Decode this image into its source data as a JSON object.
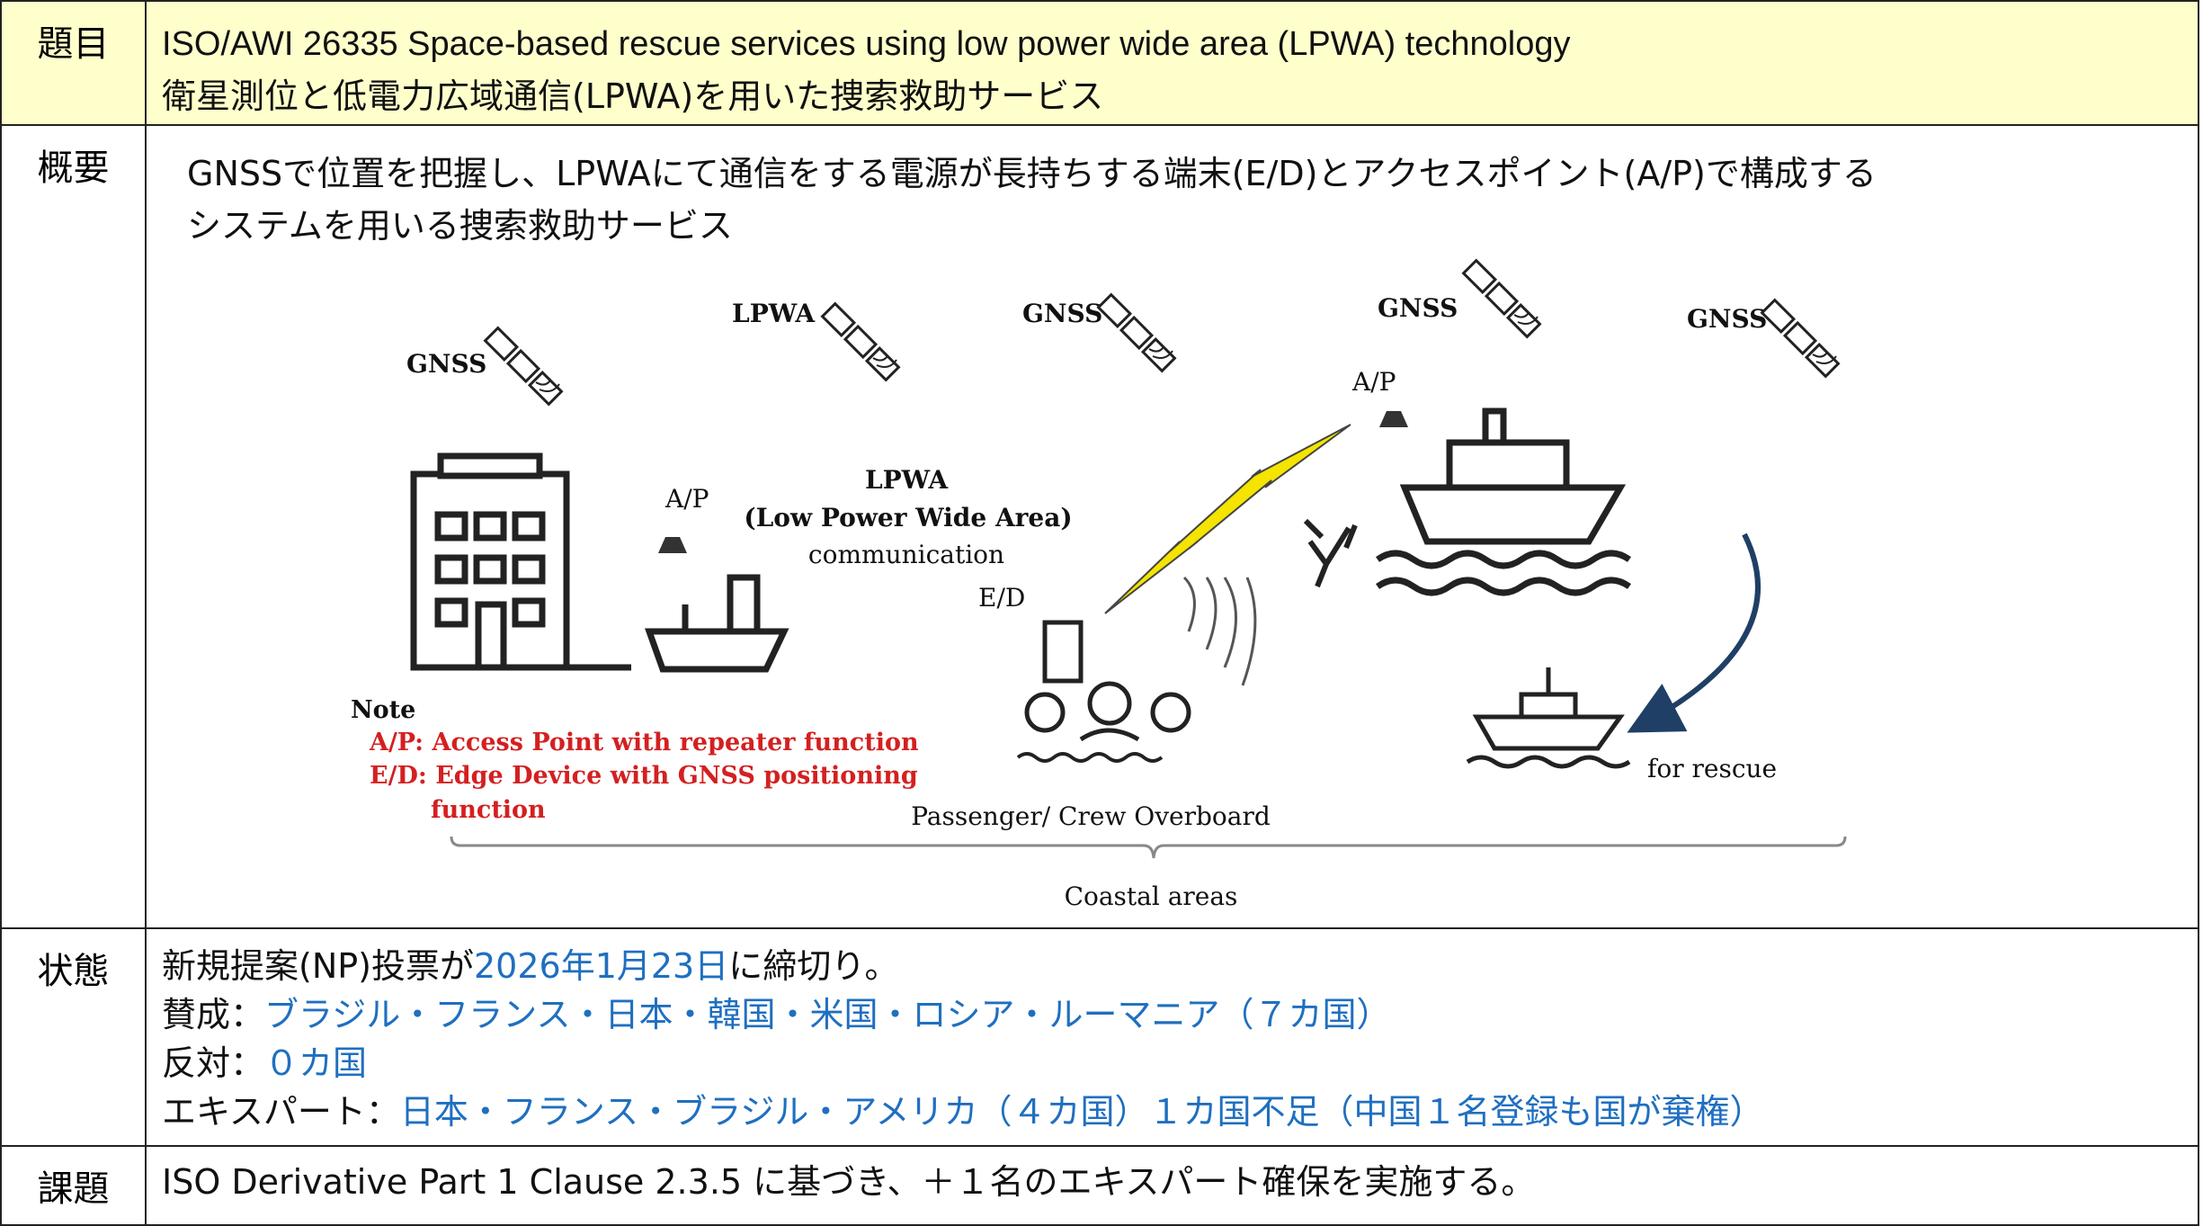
{
  "rows": [
    {
      "label": "題目",
      "lines": [
        "ISO/AWI 26335 Space-based rescue services using low power wide area (LPWA) technology",
        "衛星測位と低電力広域通信(LPWA)を用いた捜索救助サービス"
      ]
    },
    {
      "label": "概要",
      "lines": [
        "GNSSで位置を把握し、LPWAにて通信をする電源が長持ちする端末(E/D)とアクセスポイント(A/P)で構成する",
        "システムを用いる捜索救助サービス"
      ]
    },
    {
      "label": "状態",
      "segments": [
        [
          {
            "text": "新規提案(NP)投票が",
            "blue": false
          },
          {
            "text": "2026年1月23日",
            "blue": true
          },
          {
            "text": "に締切り。",
            "blue": false
          }
        ],
        [
          {
            "text": "賛成：",
            "blue": false
          },
          {
            "text": "ブラジル・フランス・日本・韓国・米国・ロシア・ルーマニア（７カ国）",
            "blue": true
          }
        ],
        [
          {
            "text": "反対：",
            "blue": false
          },
          {
            "text": "０カ国",
            "blue": true
          }
        ],
        [
          {
            "text": "エキスパート：",
            "blue": false
          },
          {
            "text": "日本・フランス・ブラジル・アメリカ（４カ国）１カ国不足（中国１名登録も国が棄権）",
            "blue": true
          }
        ]
      ]
    },
    {
      "label": "課題",
      "lines": [
        "ISO Derivative Part 1 Clause 2.3.5 に基づき、＋１名のエキスパート確保を実施する。"
      ]
    }
  ],
  "diagram": {
    "labels": [
      "GNSS",
      "LPWA",
      "GNSS",
      "GNSS",
      "GNSS",
      "LPWA",
      "(Low Power Wide Area)",
      "A/P",
      "A/P",
      "communication",
      "E/D",
      "Passenger/ Crew Overboard",
      "for rescue",
      "Coastal areas"
    ],
    "note": {
      "title": "Note",
      "lines": [
        "A/P: Access Point with repeater function",
        "E/D: Edge Device with GNSS positioning",
        "function"
      ]
    }
  }
}
